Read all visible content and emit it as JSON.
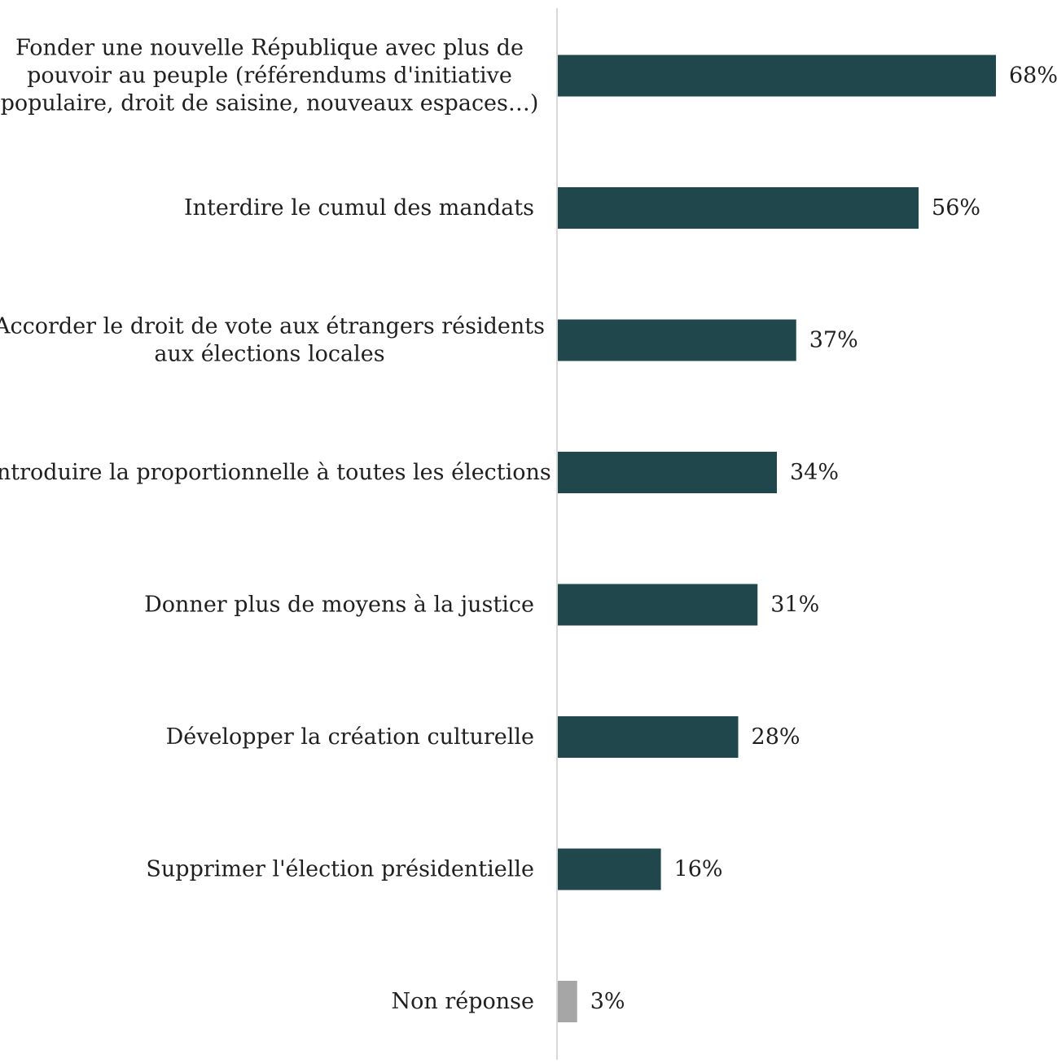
{
  "chart_data": {
    "type": "bar",
    "orientation": "horizontal",
    "categories": [
      "Fonder une nouvelle République avec plus de pouvoir au peuple (référendums d'initiative populaire, droit de saisine, nouveaux espaces…)",
      "Interdire le cumul des mandats",
      "Accorder le droit de vote aux étrangers résidents aux élections locales",
      "Introduire la proportionnelle à toutes les élections",
      "Donner plus de moyens à la justice",
      "Développer la création culturelle",
      "Supprimer l'élection présidentielle",
      "Non réponse"
    ],
    "category_lines": [
      [
        "Fonder une nouvelle République avec plus de",
        "pouvoir au peuple (référendums d'initiative",
        "populaire, droit de saisine, nouveaux espaces…)"
      ],
      [
        "Interdire le cumul des mandats"
      ],
      [
        "Accorder le droit de vote aux étrangers résidents",
        "aux élections locales"
      ],
      [
        "Introduire la proportionnelle à toutes les élections"
      ],
      [
        "Donner plus de moyens à la justice"
      ],
      [
        "Développer la création culturelle"
      ],
      [
        "Supprimer l'élection présidentielle"
      ],
      [
        "Non réponse"
      ]
    ],
    "values": [
      68,
      56,
      37,
      34,
      31,
      28,
      16,
      3
    ],
    "value_labels": [
      "68%",
      "56%",
      "37%",
      "34%",
      "31%",
      "28%",
      "16%",
      "3%"
    ],
    "bar_colors": [
      "#20474b",
      "#20474b",
      "#20474b",
      "#20474b",
      "#20474b",
      "#20474b",
      "#20474b",
      "#a6a6a6"
    ],
    "xlim": [
      0,
      68
    ],
    "grid": false,
    "legend": "none",
    "title": "",
    "xlabel": "",
    "ylabel": ""
  }
}
